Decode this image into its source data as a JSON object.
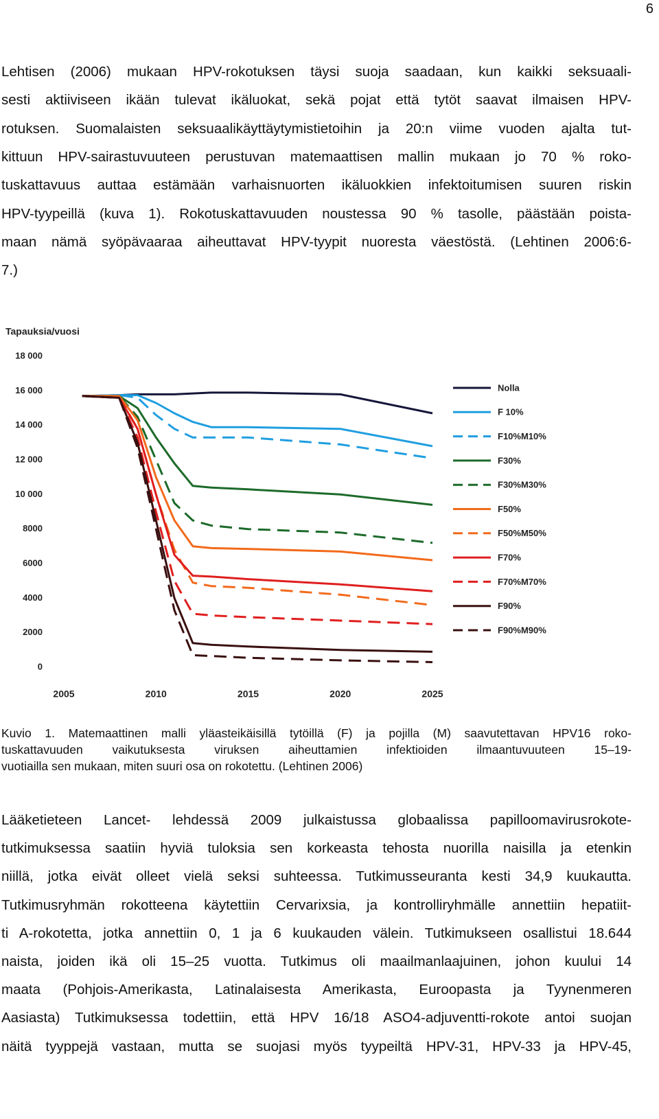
{
  "page_number": "6",
  "paragraphs": [
    {
      "lines": [
        "Lehtisen (2006) mukaan HPV-rokotuksen täysi suoja saadaan, kun kaikki seksuaali-",
        "sesti aktiiviseen ikään tulevat ikäluokat, sekä pojat että tytöt saavat ilmaisen HPV-",
        "rotuksen. Suomalaisten seksuaalikäyttäytymistietoihin ja 20:n viime vuoden ajalta tut-",
        "kittuun HPV-sairastuvuuteen perustuvan matemaattisen mallin mukaan jo 70 % roko-",
        "tuskattavuus auttaa estämään varhaisnuorten ikäluokkien infektoitumisen suuren riskin",
        "HPV-tyypeillä (kuva 1). Rokotuskattavuuden noustessa 90 % tasolle, päästään poista-",
        "maan nämä syöpävaaraa aiheuttavat HPV-tyypit nuoresta väestöstä. (Lehtinen 2006:6-",
        "7.)"
      ]
    },
    {
      "lines": [
        "Lääketieteen Lancet- lehdessä 2009 julkaistussa globaalissa papilloomavirusrokote-",
        "tutkimuksessa saatiin hyviä tuloksia sen korkeasta tehosta nuorilla naisilla ja etenkin",
        "niillä, jotka eivät olleet vielä seksi suhteessa. Tutkimusseuranta kesti 34,9 kuukautta.",
        "Tutkimusryhmän rokotteena käytettiin Cervarixsia, ja kontrolliryhmälle annettiin hepatiit-",
        "ti A-rokotetta, jotka annettiin 0, 1 ja 6 kuukauden välein. Tutkimukseen osallistui 18.644",
        "naista, joiden ikä oli 15–25 vuotta. Tutkimus oli maailmanlaajuinen, johon kuului 14",
        "maata (Pohjois-Amerikasta, Latinalaisesta Amerikasta, Euroopasta ja Tyynenmeren",
        "Aasiasta) Tutkimuksessa todettiin, että HPV 16/18 ASO4-adjuventti-rokote antoi suojan",
        "näitä tyyppejä vastaan, mutta se suojasi myös tyypeiltä HPV-31, HPV-33 ja HPV-45,"
      ]
    }
  ],
  "caption": {
    "lines": [
      "Kuvio 1. Matemaattinen malli yläasteikäisillä tytöillä (F) ja pojilla (M) saavutettavan HPV16 roko-",
      "tuskattavuuden vaikutuksesta viruksen aiheuttamien infektioiden ilmaantuvuuteen 15–19-",
      "vuotiailla sen mukaan, miten suuri osa on rokotettu. (Lehtinen 2006)"
    ]
  },
  "chart_data": {
    "type": "line",
    "y_label": "Tapauksia/vuosi",
    "x": [
      2006,
      2008,
      2009,
      2010,
      2011,
      2012,
      2013,
      2015,
      2020,
      2025
    ],
    "xlim": [
      2005,
      2025
    ],
    "xticks": [
      2005,
      2010,
      2015,
      2020,
      2025
    ],
    "ylim": [
      0,
      18000
    ],
    "yticks": [
      0,
      {
        "value": 2000,
        "label": "2000"
      },
      {
        "value": 4000,
        "label": "4000"
      },
      {
        "value": 6000,
        "label": "6000"
      },
      {
        "value": 8000,
        "label": "8000"
      },
      {
        "value": 10000,
        "label": "10 000"
      },
      {
        "value": 12000,
        "label": "12 000"
      },
      {
        "value": 14000,
        "label": "14 000"
      },
      {
        "value": 16000,
        "label": "16 000"
      },
      {
        "value": 18000,
        "label": "18 000"
      }
    ],
    "grid": false,
    "legend": "right",
    "series": [
      {
        "name": "Nolla",
        "color": "#16163a",
        "dashed": false,
        "values": [
          15700,
          15750,
          15800,
          15800,
          15800,
          15850,
          15900,
          15900,
          15800,
          14700
        ]
      },
      {
        "name": "F 10%",
        "color": "#1f9ee0",
        "dashed": false,
        "values": [
          15700,
          15750,
          15750,
          15300,
          14700,
          14200,
          13900,
          13900,
          13800,
          12800
        ]
      },
      {
        "name": "F10%M10%",
        "color": "#1f9ee0",
        "dashed": true,
        "values": [
          15700,
          15750,
          15600,
          14600,
          13800,
          13300,
          13300,
          13300,
          12900,
          12100
        ]
      },
      {
        "name": "F30%",
        "color": "#1c6a2a",
        "dashed": false,
        "values": [
          15700,
          15700,
          15000,
          13300,
          11800,
          10500,
          10400,
          10300,
          10000,
          9400
        ]
      },
      {
        "name": "F30%M30%",
        "color": "#1c6a2a",
        "dashed": true,
        "values": [
          15700,
          15700,
          14500,
          12000,
          9500,
          8500,
          8200,
          8000,
          7800,
          7200
        ]
      },
      {
        "name": "F50%",
        "color": "#f26a1b",
        "dashed": false,
        "values": [
          15700,
          15700,
          14300,
          11000,
          8500,
          7000,
          6900,
          6850,
          6700,
          6200
        ]
      },
      {
        "name": "F50%M50%",
        "color": "#f26a1b",
        "dashed": true,
        "values": [
          15700,
          15700,
          13800,
          10000,
          6800,
          4900,
          4700,
          4600,
          4200,
          3600
        ]
      },
      {
        "name": "F70%",
        "color": "#e01e1e",
        "dashed": false,
        "values": [
          15700,
          15600,
          13800,
          10000,
          6500,
          5300,
          5250,
          5100,
          4800,
          4400
        ]
      },
      {
        "name": "F70%M70%",
        "color": "#e01e1e",
        "dashed": true,
        "values": [
          15700,
          15600,
          13300,
          9000,
          5000,
          3100,
          3000,
          2900,
          2700,
          2500
        ]
      },
      {
        "name": "F90%",
        "color": "#3a1010",
        "dashed": false,
        "values": [
          15700,
          15600,
          13000,
          8500,
          4000,
          1400,
          1300,
          1200,
          1000,
          900
        ]
      },
      {
        "name": "F90%M90%",
        "color": "#3a1010",
        "dashed": true,
        "values": [
          15700,
          15600,
          12700,
          8000,
          3300,
          700,
          650,
          550,
          400,
          300
        ]
      }
    ]
  }
}
